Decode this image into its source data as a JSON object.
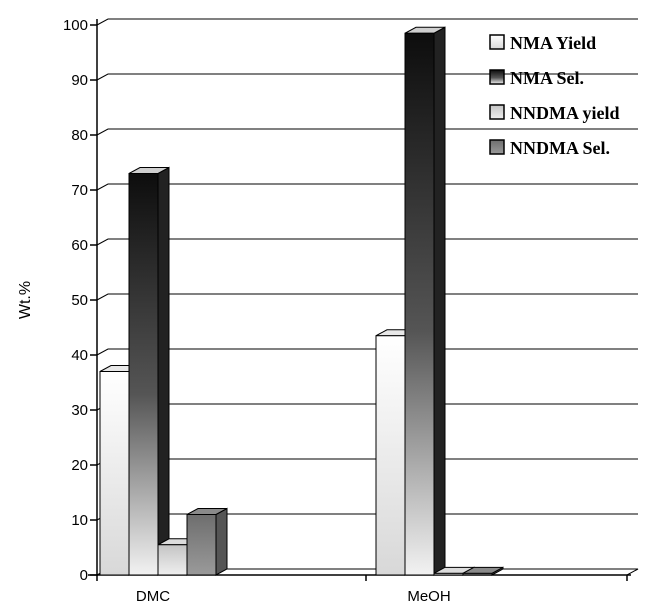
{
  "chart_data": {
    "type": "bar",
    "title": "",
    "xlabel": "",
    "ylabel": "Wt.%",
    "ylim": [
      0,
      100
    ],
    "yticks": [
      0,
      10,
      20,
      30,
      40,
      50,
      60,
      70,
      80,
      90,
      100
    ],
    "categories": [
      "DMC",
      "MeOH"
    ],
    "series": [
      {
        "name": "NMA Yield",
        "values": [
          37,
          43.5
        ],
        "color": "#ffffff"
      },
      {
        "name": "NMA Sel.",
        "values": [
          73,
          98.5
        ],
        "color": "#1a1a1a"
      },
      {
        "name": "NNDMA yield",
        "values": [
          5.5,
          0.3
        ],
        "color": "#d0d0d0"
      },
      {
        "name": "NNDMA Sel.",
        "values": [
          11,
          0.3
        ],
        "color": "#777777"
      }
    ],
    "grid": true,
    "legend_position": "top-right"
  }
}
